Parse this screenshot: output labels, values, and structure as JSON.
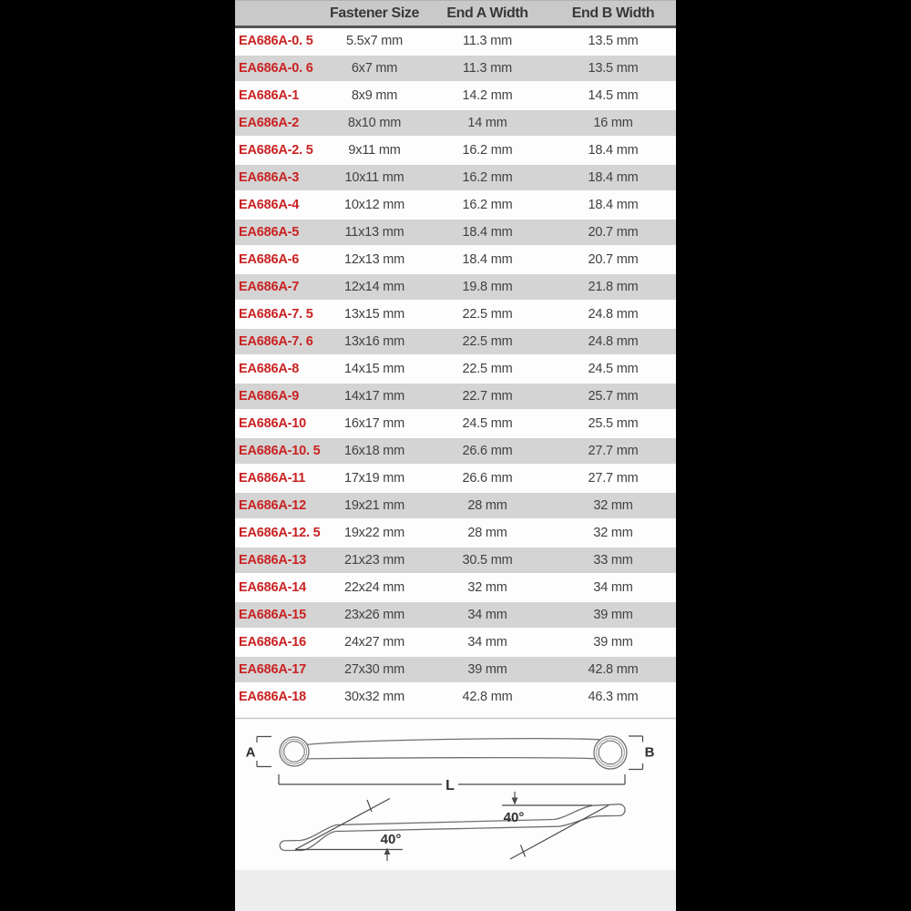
{
  "page": {
    "background": "#000000",
    "content_background": "#fdfdfd",
    "accent_red": "#c92222",
    "header_bg": "#c9c9c9",
    "row_alt_bg": "#d4d4d4"
  },
  "table": {
    "columns": [
      "",
      "Fastener Size",
      "End A Width",
      "End B Width"
    ],
    "rows": [
      {
        "code": "EA686A-0. 5",
        "size": "5.5x7 mm",
        "end_a": "11.3 mm",
        "end_b": "13.5 mm"
      },
      {
        "code": "EA686A-0. 6",
        "size": "6x7 mm",
        "end_a": "11.3 mm",
        "end_b": "13.5 mm"
      },
      {
        "code": "EA686A-1",
        "size": "8x9 mm",
        "end_a": "14.2 mm",
        "end_b": "14.5 mm"
      },
      {
        "code": "EA686A-2",
        "size": "8x10 mm",
        "end_a": "14 mm",
        "end_b": "16 mm"
      },
      {
        "code": "EA686A-2. 5",
        "size": "9x11 mm",
        "end_a": "16.2 mm",
        "end_b": "18.4 mm"
      },
      {
        "code": "EA686A-3",
        "size": "10x11 mm",
        "end_a": "16.2 mm",
        "end_b": "18.4 mm"
      },
      {
        "code": "EA686A-4",
        "size": "10x12 mm",
        "end_a": "16.2 mm",
        "end_b": "18.4 mm"
      },
      {
        "code": "EA686A-5",
        "size": "11x13 mm",
        "end_a": "18.4 mm",
        "end_b": "20.7 mm"
      },
      {
        "code": "EA686A-6",
        "size": "12x13 mm",
        "end_a": "18.4 mm",
        "end_b": "20.7 mm"
      },
      {
        "code": "EA686A-7",
        "size": "12x14 mm",
        "end_a": "19.8 mm",
        "end_b": "21.8 mm"
      },
      {
        "code": "EA686A-7. 5",
        "size": "13x15 mm",
        "end_a": "22.5 mm",
        "end_b": "24.8 mm"
      },
      {
        "code": "EA686A-7. 6",
        "size": "13x16 mm",
        "end_a": "22.5 mm",
        "end_b": "24.8 mm"
      },
      {
        "code": "EA686A-8",
        "size": "14x15 mm",
        "end_a": "22.5 mm",
        "end_b": "24.5 mm"
      },
      {
        "code": "EA686A-9",
        "size": "14x17 mm",
        "end_a": "22.7 mm",
        "end_b": "25.7 mm"
      },
      {
        "code": "EA686A-10",
        "size": "16x17 mm",
        "end_a": "24.5 mm",
        "end_b": "25.5 mm"
      },
      {
        "code": "EA686A-10. 5",
        "size": "16x18 mm",
        "end_a": "26.6 mm",
        "end_b": "27.7 mm"
      },
      {
        "code": "EA686A-11",
        "size": "17x19 mm",
        "end_a": "26.6 mm",
        "end_b": "27.7 mm"
      },
      {
        "code": "EA686A-12",
        "size": "19x21 mm",
        "end_a": "28 mm",
        "end_b": "32 mm"
      },
      {
        "code": "EA686A-12. 5",
        "size": "19x22 mm",
        "end_a": "28 mm",
        "end_b": "32 mm"
      },
      {
        "code": "EA686A-13",
        "size": "21x23 mm",
        "end_a": "30.5 mm",
        "end_b": "33 mm"
      },
      {
        "code": "EA686A-14",
        "size": "22x24 mm",
        "end_a": "32 mm",
        "end_b": "34 mm"
      },
      {
        "code": "EA686A-15",
        "size": "23x26 mm",
        "end_a": "34 mm",
        "end_b": "39 mm"
      },
      {
        "code": "EA686A-16",
        "size": "24x27 mm",
        "end_a": "34 mm",
        "end_b": "39 mm"
      },
      {
        "code": "EA686A-17",
        "size": "27x30 mm",
        "end_a": "39 mm",
        "end_b": "42.8 mm"
      },
      {
        "code": "EA686A-18",
        "size": "30x32 mm",
        "end_a": "42.8 mm",
        "end_b": "46.3 mm"
      }
    ]
  },
  "diagram": {
    "labels": {
      "end_a": "A",
      "end_b": "B",
      "length": "L",
      "angle_left": "40°",
      "angle_right": "40°"
    }
  }
}
